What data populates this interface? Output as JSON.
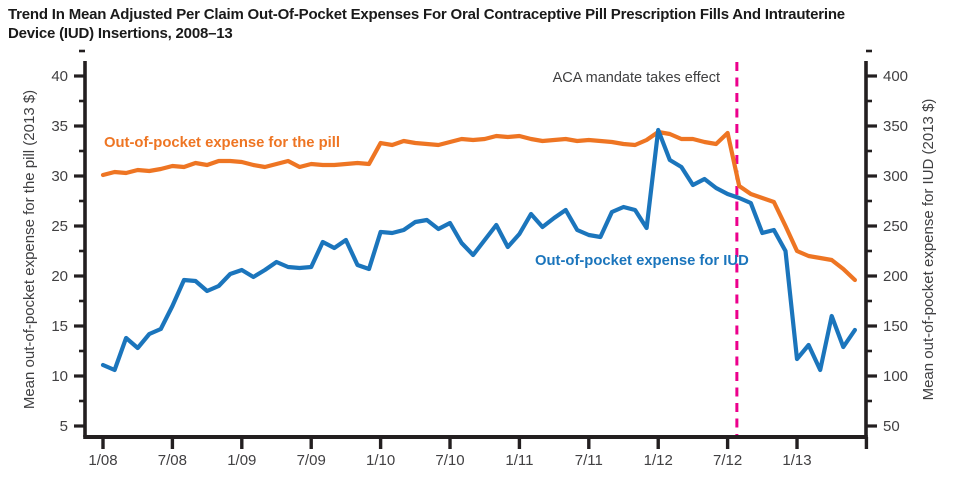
{
  "title": {
    "line1": "Trend In Mean Adjusted Per Claim Out-Of-Pocket Expenses For Oral Contraceptive Pill Prescription Fills And Intrauterine",
    "line2": "Device (IUD) Insertions, 2008–13"
  },
  "chart_data": {
    "type": "line",
    "x_tick_labels": [
      "1/08",
      "7/08",
      "1/09",
      "7/09",
      "1/10",
      "7/10",
      "1/11",
      "7/11",
      "1/12",
      "7/12",
      "1/13"
    ],
    "months": [
      "1/08",
      "2/08",
      "3/08",
      "4/08",
      "5/08",
      "6/08",
      "7/08",
      "8/08",
      "9/08",
      "10/08",
      "11/08",
      "12/08",
      "1/09",
      "2/09",
      "3/09",
      "4/09",
      "5/09",
      "6/09",
      "7/09",
      "8/09",
      "9/09",
      "10/09",
      "11/09",
      "12/09",
      "1/10",
      "2/10",
      "3/10",
      "4/10",
      "5/10",
      "6/10",
      "7/10",
      "8/10",
      "9/10",
      "10/10",
      "11/10",
      "12/10",
      "1/11",
      "2/11",
      "3/11",
      "4/11",
      "5/11",
      "6/11",
      "7/11",
      "8/11",
      "9/11",
      "10/11",
      "11/11",
      "12/11",
      "1/12",
      "2/12",
      "3/12",
      "4/12",
      "5/12",
      "6/12",
      "7/12",
      "8/12",
      "9/12",
      "10/12",
      "11/12",
      "12/12",
      "1/13",
      "2/13",
      "3/13",
      "4/13",
      "5/13",
      "6/13"
    ],
    "y_left": {
      "label": "Mean out-of-pocket expense for the pill (2013 $)",
      "min": 5,
      "max": 40,
      "major_tick_step": 5,
      "minor_tick_step": 2.5
    },
    "y_right": {
      "label": "Mean out-of-pocket expense for IUD (2013 $)",
      "min": 50,
      "max": 400,
      "major_tick_step": 50,
      "minor_tick_step": 25
    },
    "grid": "off",
    "legend_position": "inline-labels",
    "aca_line": {
      "label": "ACA mandate takes effect",
      "date": "2012-08",
      "month_index": 54.8,
      "color": "#EC008C"
    },
    "series": [
      {
        "name": "Out-of-pocket expense for the pill",
        "axis": "left",
        "color": "#EE7523",
        "values": [
          30.1,
          30.4,
          30.3,
          30.6,
          30.5,
          30.7,
          31.0,
          30.9,
          31.3,
          31.1,
          31.5,
          31.5,
          31.4,
          31.1,
          30.9,
          31.2,
          31.5,
          30.9,
          31.2,
          31.1,
          31.1,
          31.2,
          31.3,
          31.2,
          33.3,
          33.1,
          33.5,
          33.3,
          33.2,
          33.1,
          33.4,
          33.7,
          33.6,
          33.7,
          34.0,
          33.9,
          34.0,
          33.7,
          33.5,
          33.6,
          33.7,
          33.5,
          33.6,
          33.5,
          33.4,
          33.2,
          33.1,
          33.6,
          34.4,
          34.2,
          33.7,
          33.7,
          33.4,
          33.2,
          34.3,
          29.0,
          28.2,
          27.8,
          27.4,
          25.0,
          22.5,
          22.0,
          21.8,
          21.6,
          20.7,
          19.6
        ]
      },
      {
        "name": "Out-of-pocket expense for IUD",
        "axis": "right",
        "color": "#1B75BC",
        "values": [
          111,
          106,
          138,
          128,
          142,
          147,
          170,
          196,
          195,
          185,
          190,
          202,
          206,
          199,
          206,
          214,
          209,
          208,
          209,
          234,
          228,
          236,
          211,
          207,
          244,
          243,
          246,
          254,
          256,
          247,
          253,
          233,
          221,
          236,
          251,
          229,
          242,
          262,
          249,
          258,
          266,
          246,
          241,
          239,
          264,
          269,
          266,
          248,
          346,
          316,
          309,
          291,
          297,
          288,
          282,
          278,
          273,
          243,
          246,
          225,
          117,
          131,
          106,
          160,
          129,
          146
        ]
      }
    ]
  },
  "colors": {
    "pill": "#EE7523",
    "iud": "#1B75BC",
    "aca_line": "#EC008C",
    "axis": "#231F20",
    "tick_label": "#414042",
    "title": "#1A1A1A"
  }
}
